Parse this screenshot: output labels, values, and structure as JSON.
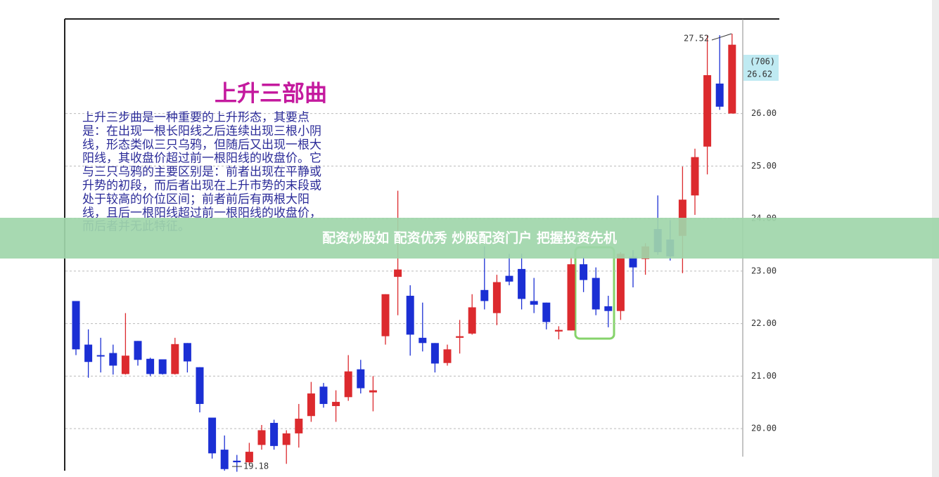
{
  "chart_data": {
    "type": "candlestick",
    "title": "上升三部曲",
    "text_lines": [
      "上升三步曲是一种重要的上升形态，其要点",
      "是：在出现一根长阳线之后连续出现三根小阴",
      "线，形态类似三只乌鸦，但随后又出现一根大",
      "阳线，其收盘价超过前一根阳线的收盘价。它",
      "与三只乌鸦的主要区别是：前者出现在平静或",
      "升势的初段，而后者出现在上升市势的末段或",
      "处于较高的价位区间；前者前后有两根大阳",
      "线，且后一根阳线超过前一根阳线的收盘价，",
      "而后者并无此特征。"
    ],
    "up_color": "#dc2a2e",
    "down_color": "#1b2fd4",
    "open": [
      22.43,
      21.6,
      21.4,
      21.44,
      21.04,
      21.67,
      21.33,
      21.32,
      21.04,
      21.63,
      21.17,
      20.21,
      19.6,
      19.39,
      19.36,
      19.69,
      20.11,
      19.69,
      19.91,
      20.24,
      20.8,
      20.43,
      20.6,
      21.13,
      20.69,
      21.76,
      22.89,
      22.53,
      21.73,
      21.63,
      21.25,
      21.73,
      21.81,
      22.64,
      22.2,
      22.91,
      23.04,
      22.43,
      22.4,
      21.85,
      21.87,
      23.13,
      22.87,
      22.33,
      22.24,
      23.27,
      23.23,
      23.8,
      23.6,
      23.67,
      24.44,
      25.37,
      26.57,
      26.0
    ],
    "high": [
      22.43,
      21.89,
      21.73,
      21.6,
      22.2,
      21.67,
      21.35,
      21.32,
      21.73,
      21.63,
      21.17,
      20.21,
      19.87,
      19.5,
      19.73,
      20.07,
      20.17,
      19.97,
      20.47,
      20.89,
      20.87,
      20.73,
      21.4,
      21.31,
      21.0,
      22.56,
      24.53,
      22.73,
      22.4,
      21.63,
      21.6,
      22.07,
      22.56,
      23.47,
      22.93,
      23.33,
      23.33,
      22.87,
      22.4,
      21.95,
      23.27,
      23.27,
      23.07,
      22.53,
      23.36,
      23.4,
      23.53,
      24.44,
      23.97,
      24.99,
      25.33,
      27.49,
      27.49,
      27.52
    ],
    "low": [
      21.4,
      20.97,
      21.07,
      21.03,
      21.03,
      21.2,
      21.0,
      21.03,
      21.03,
      21.07,
      20.31,
      19.43,
      19.2,
      19.18,
      19.31,
      19.6,
      19.6,
      19.33,
      19.64,
      20.13,
      20.4,
      20.13,
      20.53,
      20.67,
      20.33,
      21.6,
      22.16,
      21.39,
      21.47,
      21.07,
      21.2,
      21.43,
      21.79,
      22.27,
      21.97,
      22.73,
      22.27,
      22.2,
      21.89,
      21.7,
      21.87,
      22.6,
      22.16,
      21.93,
      22.07,
      22.69,
      22.93,
      23.31,
      23.2,
      22.96,
      24.07,
      24.84,
      26.07,
      26.0
    ],
    "close": [
      21.51,
      21.27,
      21.38,
      21.2,
      21.39,
      21.31,
      21.04,
      21.04,
      21.61,
      21.28,
      20.47,
      19.53,
      19.23,
      19.36,
      19.56,
      19.97,
      19.67,
      19.91,
      20.19,
      20.67,
      20.47,
      20.51,
      21.09,
      20.77,
      20.73,
      22.56,
      23.03,
      21.79,
      21.63,
      21.24,
      21.51,
      21.76,
      22.31,
      22.43,
      22.79,
      22.8,
      22.47,
      22.36,
      22.03,
      21.88,
      23.13,
      22.83,
      22.27,
      22.24,
      23.33,
      23.07,
      23.47,
      23.36,
      23.28,
      24.36,
      25.17,
      26.73,
      26.13,
      27.31
    ],
    "ylim": [
      19.2,
      27.8
    ],
    "yticks": [
      {
        "value": 20,
        "label": "20.00"
      },
      {
        "value": 21,
        "label": "21.00"
      },
      {
        "value": 22,
        "label": "22.00"
      },
      {
        "value": 23,
        "label": "23.00"
      },
      {
        "value": 24,
        "label": "24.00"
      },
      {
        "value": 25,
        "label": "25.00"
      },
      {
        "value": 26,
        "label": "26.00"
      }
    ],
    "grid": true,
    "annotations": [
      "27.52",
      "19.18",
      "(706)",
      "26.62"
    ]
  },
  "banner": "配资炒股如 配资优秀 炒股配资门户 把握投资先机"
}
